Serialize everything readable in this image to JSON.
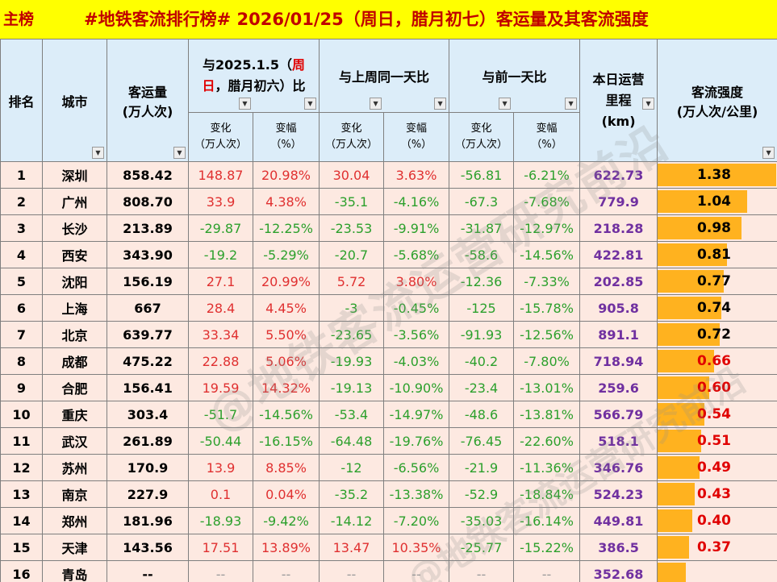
{
  "title_bar": {
    "tag": "主榜",
    "title": "#地铁客流排行榜# 2026/01/25（周日，腊月初七）客运量及其客流强度"
  },
  "header": {
    "rank": "排名",
    "city": "城市",
    "volume_line1": "客运量",
    "volume_line2": "(万人次)",
    "cmp_date_pre": "与2025.1.5（",
    "cmp_date_red1": "周",
    "cmp_date_red2": "日",
    "cmp_date_post": "，腊月初六）比",
    "cmp_week": "与上周同一天比",
    "cmp_prev": "与前一天比",
    "mileage_line1": "本日运营",
    "mileage_line2": "里程",
    "mileage_line3": "(km)",
    "intensity_line1": "客流强度",
    "intensity_line2": "(万人次/公里)",
    "change_line1": "变化",
    "change_line2": "（万人次）",
    "pct_line1": "变幅",
    "pct_line2": "（%）",
    "filter_icon": "dropdown-filter-icon"
  },
  "rows": [
    {
      "rank": "1",
      "city": "深圳",
      "volume": "858.42",
      "c1": "148.87",
      "p1": "20.98%",
      "c2": "30.04",
      "p2": "3.63%",
      "c3": "-56.81",
      "p3": "-6.21%",
      "km": "622.73",
      "intensity": "1.38",
      "ivalue": 1.38
    },
    {
      "rank": "2",
      "city": "广州",
      "volume": "808.70",
      "c1": "33.9",
      "p1": "4.38%",
      "c2": "-35.1",
      "p2": "-4.16%",
      "c3": "-67.3",
      "p3": "-7.68%",
      "km": "779.9",
      "intensity": "1.04",
      "ivalue": 1.04
    },
    {
      "rank": "3",
      "city": "长沙",
      "volume": "213.89",
      "c1": "-29.87",
      "p1": "-12.25%",
      "c2": "-23.53",
      "p2": "-9.91%",
      "c3": "-31.87",
      "p3": "-12.97%",
      "km": "218.28",
      "intensity": "0.98",
      "ivalue": 0.98
    },
    {
      "rank": "4",
      "city": "西安",
      "volume": "343.90",
      "c1": "-19.2",
      "p1": "-5.29%",
      "c2": "-20.7",
      "p2": "-5.68%",
      "c3": "-58.6",
      "p3": "-14.56%",
      "km": "422.81",
      "intensity": "0.81",
      "ivalue": 0.81
    },
    {
      "rank": "5",
      "city": "沈阳",
      "volume": "156.19",
      "c1": "27.1",
      "p1": "20.99%",
      "c2": "5.72",
      "p2": "3.80%",
      "c3": "-12.36",
      "p3": "-7.33%",
      "km": "202.85",
      "intensity": "0.77",
      "ivalue": 0.77
    },
    {
      "rank": "6",
      "city": "上海",
      "volume": "667",
      "c1": "28.4",
      "p1": "4.45%",
      "c2": "-3",
      "p2": "-0.45%",
      "c3": "-125",
      "p3": "-15.78%",
      "km": "905.8",
      "intensity": "0.74",
      "ivalue": 0.74
    },
    {
      "rank": "7",
      "city": "北京",
      "volume": "639.77",
      "c1": "33.34",
      "p1": "5.50%",
      "c2": "-23.65",
      "p2": "-3.56%",
      "c3": "-91.93",
      "p3": "-12.56%",
      "km": "891.1",
      "intensity": "0.72",
      "ivalue": 0.72
    },
    {
      "rank": "8",
      "city": "成都",
      "volume": "475.22",
      "c1": "22.88",
      "p1": "5.06%",
      "c2": "-19.93",
      "p2": "-4.03%",
      "c3": "-40.2",
      "p3": "-7.80%",
      "km": "718.94",
      "intensity": "0.66",
      "ivalue": 0.66
    },
    {
      "rank": "9",
      "city": "合肥",
      "volume": "156.41",
      "c1": "19.59",
      "p1": "14.32%",
      "c2": "-19.13",
      "p2": "-10.90%",
      "c3": "-23.4",
      "p3": "-13.01%",
      "km": "259.6",
      "intensity": "0.60",
      "ivalue": 0.6
    },
    {
      "rank": "10",
      "city": "重庆",
      "volume": "303.4",
      "c1": "-51.7",
      "p1": "-14.56%",
      "c2": "-53.4",
      "p2": "-14.97%",
      "c3": "-48.6",
      "p3": "-13.81%",
      "km": "566.79",
      "intensity": "0.54",
      "ivalue": 0.54
    },
    {
      "rank": "11",
      "city": "武汉",
      "volume": "261.89",
      "c1": "-50.44",
      "p1": "-16.15%",
      "c2": "-64.48",
      "p2": "-19.76%",
      "c3": "-76.45",
      "p3": "-22.60%",
      "km": "518.1",
      "intensity": "0.51",
      "ivalue": 0.51
    },
    {
      "rank": "12",
      "city": "苏州",
      "volume": "170.9",
      "c1": "13.9",
      "p1": "8.85%",
      "c2": "-12",
      "p2": "-6.56%",
      "c3": "-21.9",
      "p3": "-11.36%",
      "km": "346.76",
      "intensity": "0.49",
      "ivalue": 0.49
    },
    {
      "rank": "13",
      "city": "南京",
      "volume": "227.9",
      "c1": "0.1",
      "p1": "0.04%",
      "c2": "-35.2",
      "p2": "-13.38%",
      "c3": "-52.9",
      "p3": "-18.84%",
      "km": "524.23",
      "intensity": "0.43",
      "ivalue": 0.43
    },
    {
      "rank": "14",
      "city": "郑州",
      "volume": "181.96",
      "c1": "-18.93",
      "p1": "-9.42%",
      "c2": "-14.12",
      "p2": "-7.20%",
      "c3": "-35.03",
      "p3": "-16.14%",
      "km": "449.81",
      "intensity": "0.40",
      "ivalue": 0.4
    },
    {
      "rank": "15",
      "city": "天津",
      "volume": "143.56",
      "c1": "17.51",
      "p1": "13.89%",
      "c2": "13.47",
      "p2": "10.35%",
      "c3": "-25.77",
      "p3": "-15.22%",
      "km": "386.5",
      "intensity": "0.37",
      "ivalue": 0.37
    },
    {
      "rank": "16",
      "city": "青岛",
      "volume": "--",
      "c1": "--",
      "p1": "--",
      "c2": "--",
      "p2": "--",
      "c3": "--",
      "p3": "--",
      "km": "352.68",
      "intensity": "",
      "ivalue": 0.33
    }
  ],
  "colors": {
    "title_bg": "#ffff00",
    "title_text": "#c00000",
    "header_bg": "#dcedf9",
    "row_bg": "#fde9e1",
    "positive": "#e03030",
    "negative": "#2ca02c",
    "mileage": "#7030a0",
    "intensity_bar": "#ffb21f",
    "intensity_red": "#e00000"
  },
  "intensity_red_threshold": 0.7,
  "watermark": "@地铁客流运营研究前沿"
}
